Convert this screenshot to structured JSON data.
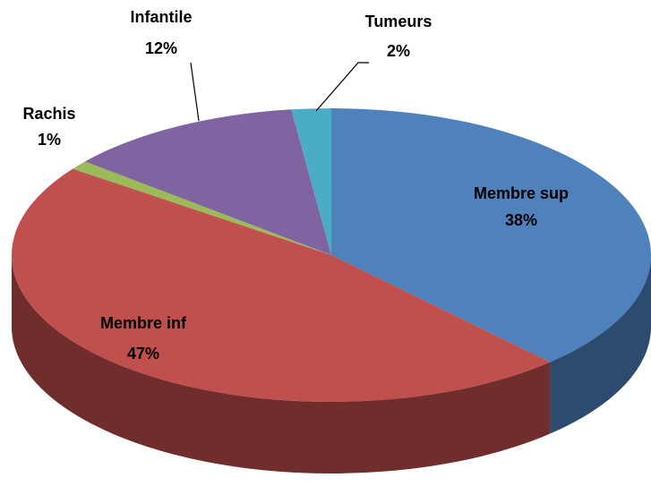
{
  "chart_data": {
    "type": "pie3d",
    "categories": [
      "Membre sup",
      "Membre inf",
      "Rachis",
      "Infantile",
      "Tumeurs"
    ],
    "values": [
      38,
      47,
      1,
      12,
      2
    ],
    "value_labels": [
      "38%",
      "47%",
      "1%",
      "12%",
      "2%"
    ],
    "colors": [
      "#4f81bd",
      "#c0504d",
      "#9bbb59",
      "#8064a2",
      "#4bacc6"
    ]
  }
}
